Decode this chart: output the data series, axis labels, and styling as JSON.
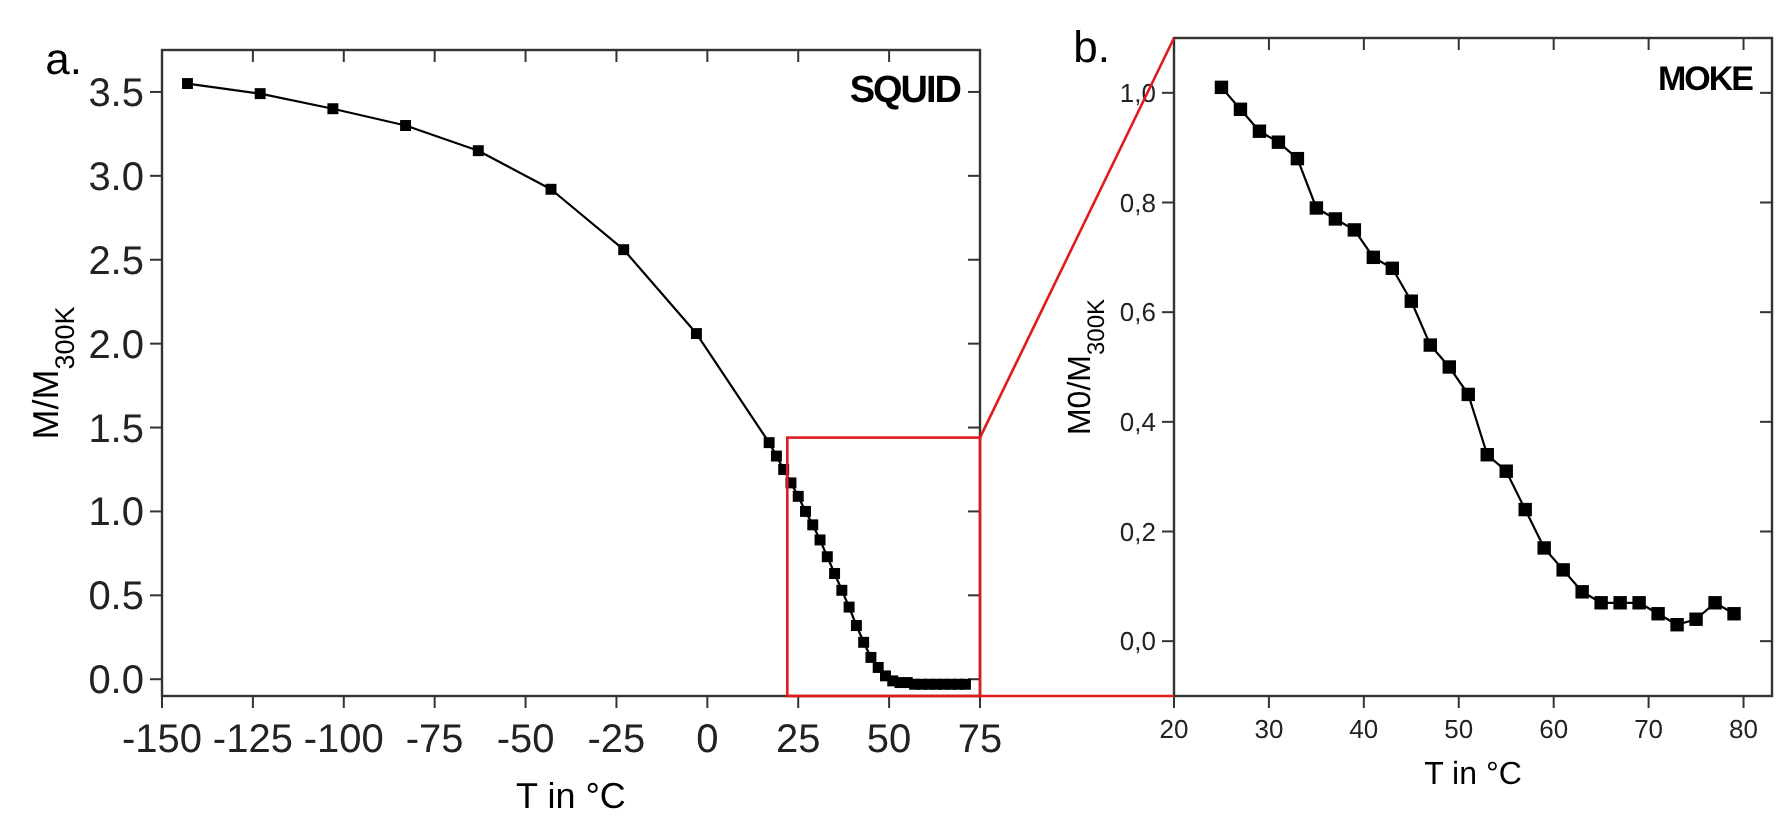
{
  "chart_data": [
    {
      "type": "line",
      "title": "a.",
      "xlabel": "T in °C",
      "ylabel": "M/M$_{300K}$",
      "annotations": [
        "SQUID"
      ],
      "marker": "square",
      "grid": false,
      "xlim": [
        -150,
        75
      ],
      "xticks": [
        -150,
        -125,
        -100,
        -75,
        -50,
        -25,
        0,
        25,
        50,
        75
      ],
      "ylim": [
        -0.1,
        3.75
      ],
      "yticks": [
        {
          "value": 0,
          "label": "0.0"
        },
        0.5,
        {
          "value": 1,
          "label": "1.0"
        },
        1.5,
        {
          "value": 2,
          "label": "2.0"
        },
        2.5,
        {
          "value": 3,
          "label": "3.0"
        },
        3.5
      ],
      "series": [
        {
          "color": "#000000",
          "x": [
            -143,
            -123,
            -103,
            -83,
            -63,
            -43,
            -23,
            -3,
            17,
            19,
            21,
            23,
            25,
            27,
            29,
            31,
            33,
            35,
            37,
            39,
            41,
            43,
            45,
            47,
            49,
            51,
            53,
            55,
            57,
            59,
            61,
            63,
            65,
            67,
            69,
            71
          ],
          "values": [
            3.55,
            3.49,
            3.4,
            3.3,
            3.15,
            2.92,
            2.56,
            2.06,
            1.41,
            1.33,
            1.25,
            1.17,
            1.09,
            1.0,
            0.92,
            0.83,
            0.73,
            0.63,
            0.53,
            0.43,
            0.32,
            0.22,
            0.13,
            0.07,
            0.02,
            -0.01,
            -0.02,
            -0.02,
            -0.03,
            -0.03,
            -0.03,
            -0.03,
            -0.03,
            -0.03,
            -0.03,
            -0.03
          ]
        }
      ]
    },
    {
      "type": "line",
      "title": "b.",
      "xlabel": "T in °C",
      "ylabel": "M0/M$_{300K}$",
      "annotations": [
        "MOKE"
      ],
      "marker": "square",
      "grid": false,
      "xlim": [
        20,
        83
      ],
      "xticks": [
        20,
        30,
        40,
        50,
        60,
        70,
        80
      ],
      "ylim": [
        -0.1,
        1.1
      ],
      "yticks": [
        {
          "value": 0,
          "label": "0,0"
        },
        {
          "value": 0.2,
          "label": "0,2"
        },
        {
          "value": 0.4,
          "label": "0,4"
        },
        {
          "value": 0.6,
          "label": "0,6"
        },
        {
          "value": 0.8,
          "label": "0,8"
        },
        {
          "value": 1,
          "label": "1,0"
        }
      ],
      "series": [
        {
          "color": "#000000",
          "x": [
            25,
            27,
            29,
            31,
            33,
            35,
            37,
            39,
            41,
            43,
            45,
            47,
            49,
            51,
            53,
            55,
            57,
            59,
            61,
            63,
            65,
            67,
            69,
            71,
            73,
            75,
            77,
            79
          ],
          "values": [
            1.01,
            0.97,
            0.93,
            0.91,
            0.88,
            0.79,
            0.77,
            0.75,
            0.7,
            0.68,
            0.62,
            0.54,
            0.5,
            0.45,
            0.34,
            0.31,
            0.24,
            0.17,
            0.13,
            0.09,
            0.07,
            0.07,
            0.07,
            0.05,
            0.03,
            0.04,
            0.07,
            0.05
          ]
        }
      ]
    }
  ]
}
